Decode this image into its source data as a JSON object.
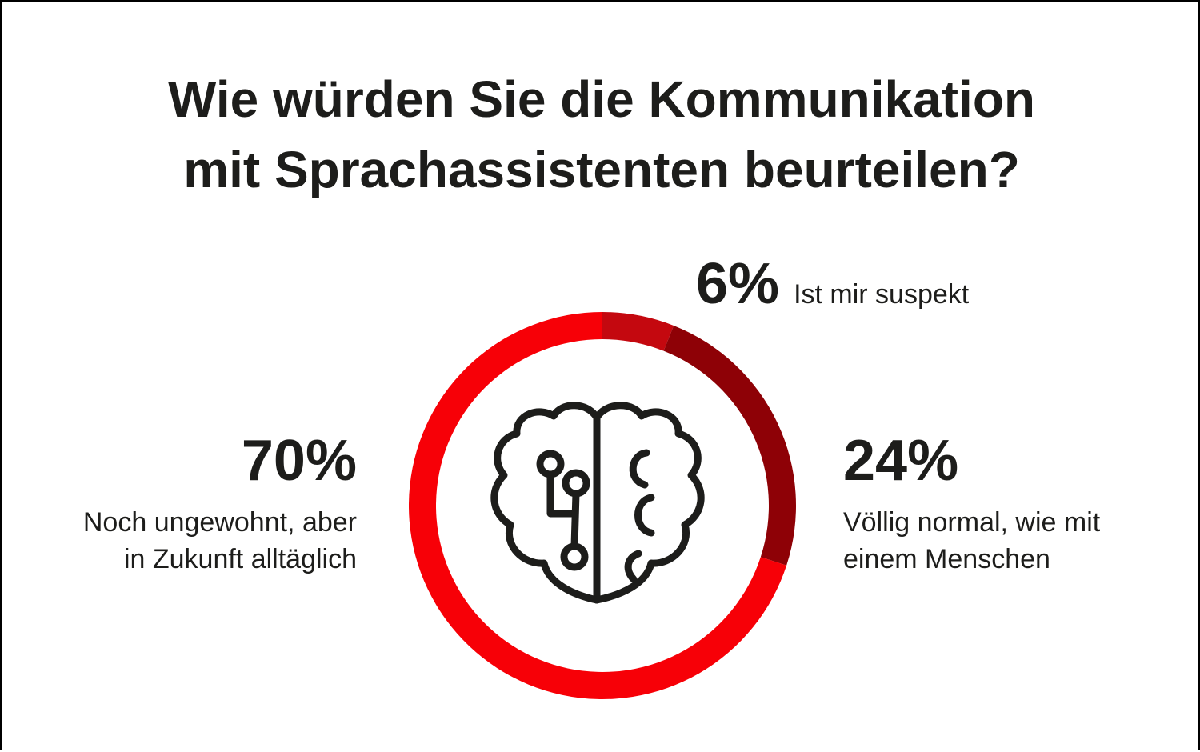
{
  "title": {
    "line1": "Wie würden Sie die Kommunikation",
    "line2": "mit Sprachassistenten beurteilen?"
  },
  "chart_data": {
    "type": "donut",
    "segments": [
      {
        "value": 6,
        "label": "6%",
        "text": "Ist mir suspekt",
        "color": "#c4080f"
      },
      {
        "value": 24,
        "label": "24%",
        "text": "Völlig normal, wie mit einem Menschen",
        "text_lines": [
          "Völlig normal, wie mit",
          "einem Menschen"
        ],
        "color": "#8e0106"
      },
      {
        "value": 70,
        "label": "70%",
        "text": "Noch ungewohnt, aber in Zukunft alltäglich",
        "text_lines": [
          "Noch ungewohnt, aber",
          "in Zukunft alltäglich"
        ],
        "color": "#f70007"
      }
    ],
    "center_icon": "brain-circuit-icon"
  }
}
